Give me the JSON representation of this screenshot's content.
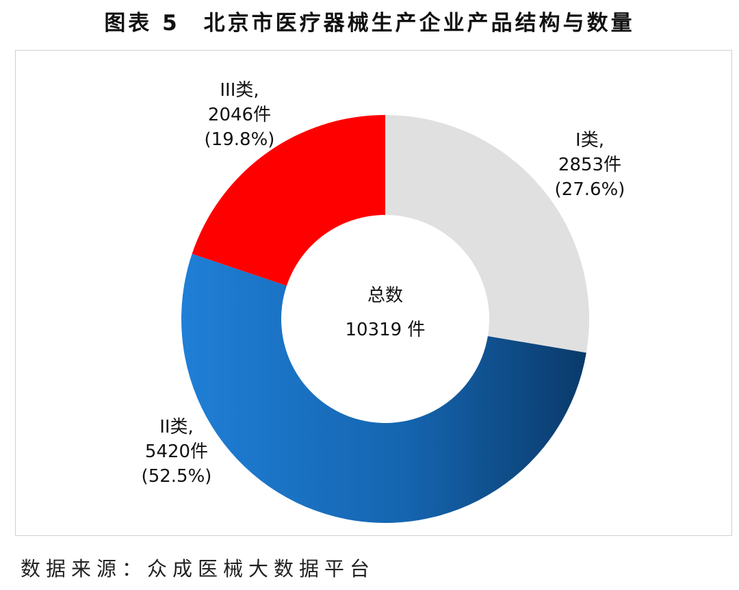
{
  "title": "图表 5　北京市医疗器械生产企业产品结构与数量",
  "source": "数据来源：众成医械大数据平台",
  "chart_data": {
    "type": "pie",
    "donut": true,
    "center_text": [
      "总数",
      "10319 件"
    ],
    "total": 10319,
    "slices": [
      {
        "category": "I类",
        "value": 2853,
        "percent": 27.6,
        "color": "#e0e0e0",
        "label_lines": [
          "I类,",
          "2853件",
          "(27.6%)"
        ]
      },
      {
        "category": "II类",
        "value": 5420,
        "percent": 52.5,
        "color_start": "#1f7fd6",
        "color_end": "#0a3a6a",
        "label_lines": [
          "II类,",
          "5420件",
          "(52.5%)"
        ]
      },
      {
        "category": "III类",
        "value": 2046,
        "percent": 19.8,
        "color": "#ff0000",
        "label_lines": [
          "III类,",
          "2046件",
          "(19.8%)"
        ]
      }
    ]
  }
}
